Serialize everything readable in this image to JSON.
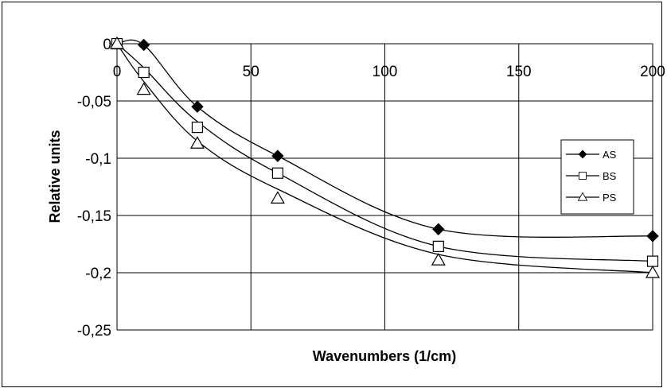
{
  "chart_data": {
    "type": "line",
    "xlabel": "Wavenumbers (1/cm)",
    "ylabel": "Relative units",
    "xlim": [
      0,
      200
    ],
    "ylim": [
      -0.25,
      0
    ],
    "x_ticks": [
      0,
      50,
      100,
      150,
      200
    ],
    "x_tick_labels": [
      "0",
      "50",
      "100",
      "150",
      "200"
    ],
    "y_ticks": [
      0,
      -0.05,
      -0.1,
      -0.15,
      -0.2,
      -0.25
    ],
    "y_tick_labels": [
      "0",
      "-0,05",
      "-0,1",
      "-0,15",
      "-0,2",
      "-0,25"
    ],
    "grid": true,
    "legend_position": "right",
    "series": [
      {
        "name": "AS",
        "marker": "diamond-filled",
        "x": [
          0,
          10,
          30,
          60,
          120,
          200
        ],
        "y": [
          0,
          -0.001,
          -0.055,
          -0.098,
          -0.162,
          -0.168
        ],
        "curve_y": [
          0,
          -0.001,
          -0.055,
          -0.098,
          -0.162,
          -0.168
        ]
      },
      {
        "name": "BS",
        "marker": "square-open",
        "x": [
          0,
          10,
          30,
          60,
          120,
          200
        ],
        "y": [
          0,
          -0.025,
          -0.073,
          -0.113,
          -0.177,
          -0.19
        ],
        "curve_y": [
          0,
          -0.021,
          -0.068,
          -0.113,
          -0.177,
          -0.19
        ]
      },
      {
        "name": "PS",
        "marker": "triangle-open",
        "x": [
          0,
          10,
          30,
          60,
          120,
          200
        ],
        "y": [
          0,
          -0.04,
          -0.087,
          -0.135,
          -0.189,
          -0.2
        ],
        "curve_y": [
          0,
          -0.033,
          -0.085,
          -0.127,
          -0.184,
          -0.2
        ]
      }
    ]
  }
}
